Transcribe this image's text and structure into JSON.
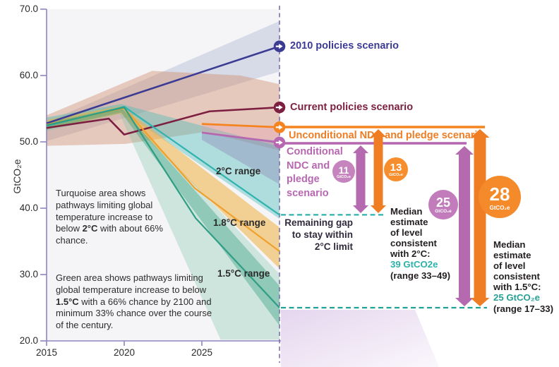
{
  "axis": {
    "y_title": "GtCO₂e",
    "y_ticks": [
      "70.0",
      "60.0",
      "50.0",
      "40.0",
      "30.0",
      "20.0"
    ],
    "x_ticks": [
      "2015",
      "2020",
      "2025"
    ]
  },
  "scenario_labels": {
    "s2010": "2010 policies scenario",
    "current": "Current policies scenario",
    "unconditional": "Unconditional NDC and pledge scenario",
    "conditional": "Conditional NDC and pledge scenario"
  },
  "range_labels": {
    "r2": "2°C range",
    "r18": "1.8°C range",
    "r15": "1.5°C range"
  },
  "notes": {
    "turquoise": {
      "pre": "Turquoise area shows pathways limiting global temperature increase to below ",
      "bold": "2°C",
      "post": " with about 66% chance."
    },
    "green": {
      "pre": "Green area shows pathways limiting global temperature increase to below ",
      "bold": "1.5°C",
      "post": " with a 66% chance by 2100 and minimum 33% chance over the course of the century."
    }
  },
  "gap_label": {
    "l1": "Remaining gap",
    "l2": "to stay within",
    "l3": "2°C limit"
  },
  "gap_circles": [
    {
      "value": "11",
      "unit": "GtCO₂e"
    },
    {
      "value": "13",
      "unit": "GtCO₂e"
    },
    {
      "value": "25",
      "unit": "GtCO₂e"
    },
    {
      "value": "28",
      "unit": "GtCO₂e"
    }
  ],
  "median_blocks": [
    {
      "lines": [
        "Median",
        "estimate",
        "of level",
        "consistent",
        "with 2°C:"
      ],
      "value": "39 GtCO2e",
      "range": "(range 33–49)",
      "value_color": "#2bb1aa"
    },
    {
      "lines": [
        "Median",
        "estimate",
        "of level",
        "consistent",
        "with 1.5°C:"
      ],
      "value": "25 GtCO₂e",
      "range": "(range 17–33)",
      "value_color": "#27a094"
    }
  ],
  "palette": {
    "navy": "#3c3b94",
    "maroon": "#7d1f41",
    "orange": "#ee7d23",
    "purple": "#b768b1",
    "teal": "#2fb4af",
    "green": "#2f9e84",
    "axis": "#8e85c1",
    "dashed_guide": "#7b6fb0"
  },
  "chart_data": {
    "type": "line",
    "xlabel": "",
    "ylabel": "GtCO₂e",
    "x_range": [
      2015,
      2030
    ],
    "y_range": [
      20,
      70
    ],
    "series": [
      {
        "name": "2010 policies scenario",
        "color": "#3c3b94",
        "width": 2.6,
        "points": [
          [
            2015,
            52.8
          ],
          [
            2030,
            64.4
          ]
        ]
      },
      {
        "name": "Current policies scenario",
        "color": "#7d1f41",
        "width": 2.6,
        "points": [
          [
            2015,
            52.1
          ],
          [
            2019,
            53.5
          ],
          [
            2020,
            51.1
          ],
          [
            2025.5,
            54.6
          ],
          [
            2030,
            55.2
          ]
        ]
      },
      {
        "name": "2C median pathway",
        "color": "#2fb4af",
        "width": 2.2,
        "points": [
          [
            2015,
            52.4
          ],
          [
            2020,
            55.3
          ],
          [
            2030,
            39
          ]
        ]
      },
      {
        "name": "1.8C median pathway",
        "color": "#f0a12d",
        "width": 2.2,
        "points": [
          [
            2015,
            52.6
          ],
          [
            2020,
            55.1
          ],
          [
            2024.55,
            43
          ],
          [
            2030,
            33.5
          ]
        ]
      },
      {
        "name": "1.5C median pathway",
        "color": "#2f9e84",
        "width": 2.2,
        "points": [
          [
            2015,
            52.5
          ],
          [
            2020,
            55.2
          ],
          [
            2024.6,
            38.5
          ],
          [
            2030,
            25
          ]
        ]
      },
      {
        "name": "Unconditional NDC and pledge scenario",
        "color": "#f5831f",
        "width": 2.8,
        "points": [
          [
            2025,
            52.7
          ],
          [
            2030,
            52.2
          ]
        ]
      },
      {
        "name": "Conditional NDC and pledge scenario",
        "color": "#b667b0",
        "width": 2.8,
        "points": [
          [
            2025,
            51.4
          ],
          [
            2030,
            49.9
          ]
        ]
      }
    ],
    "areas": [
      {
        "name": "2010 policies range",
        "color": "#ccd1e3",
        "opacity": 0.75,
        "points": [
          [
            2015,
            53
          ],
          [
            2030,
            68.2
          ],
          [
            2030,
            60.6
          ],
          [
            2015,
            50.1
          ]
        ]
      },
      {
        "name": "current policies range",
        "color": "#cf8763",
        "opacity": 0.4,
        "points": [
          [
            2015,
            54
          ],
          [
            2021.8,
            60.7
          ],
          [
            2027.5,
            60
          ],
          [
            2030,
            58.7
          ],
          [
            2030,
            48.7
          ],
          [
            2025.2,
            51.5
          ],
          [
            2020.1,
            49.7
          ],
          [
            2015,
            49.4
          ]
        ]
      },
      {
        "name": "2C range band",
        "color": "#4fbdb7",
        "opacity": 0.42,
        "points": [
          [
            2015,
            53.7
          ],
          [
            2019.8,
            55.7
          ],
          [
            2030,
            49.3
          ],
          [
            2030,
            38.4
          ],
          [
            2019.8,
            54.7
          ],
          [
            2015,
            51.8
          ]
        ]
      },
      {
        "name": "1.5C halo band",
        "color": "#7cc4a5",
        "opacity": 0.32,
        "points": [
          [
            2015,
            53.5
          ],
          [
            2019.7,
            55.5
          ],
          [
            2030,
            30.1
          ],
          [
            2030,
            20.2
          ],
          [
            2026.2,
            20.2
          ],
          [
            2019.7,
            54.2
          ],
          [
            2015,
            51.6
          ]
        ]
      },
      {
        "name": "1.8C range band",
        "color": "#eeb03f",
        "opacity": 0.55,
        "points": [
          [
            2015,
            53.3
          ],
          [
            2019.8,
            55.4
          ],
          [
            2030,
            37.1
          ],
          [
            2030,
            30.9
          ],
          [
            2019.8,
            54.3
          ],
          [
            2015,
            51.9
          ]
        ]
      },
      {
        "name": "1.5C range band",
        "color": "#3ba183",
        "opacity": 0.42,
        "points": [
          [
            2015,
            52.9
          ],
          [
            2019.8,
            55.2
          ],
          [
            2030,
            28.3
          ],
          [
            2030,
            22.3
          ],
          [
            2019.8,
            54.4
          ],
          [
            2015,
            51.9
          ]
        ]
      },
      {
        "name": "ndc pink fan",
        "color": "#e59ab0",
        "opacity": 0.32,
        "points": [
          [
            2025,
            52.5
          ],
          [
            2030,
            52.1
          ],
          [
            2030,
            50.2
          ],
          [
            2025,
            51.3
          ]
        ]
      },
      {
        "name": "ndc purple fan",
        "color": "#8f86b8",
        "opacity": 0.4,
        "points": [
          [
            2025,
            51.2
          ],
          [
            2030,
            50.2
          ],
          [
            2030,
            43.6
          ],
          [
            2025,
            50.3
          ]
        ]
      }
    ],
    "markers": [
      {
        "year": 2030,
        "value": 64.4,
        "color": "#3c3b94"
      },
      {
        "year": 2030,
        "value": 55.2,
        "color": "#7d1f41"
      },
      {
        "year": 2030,
        "value": 52.2,
        "color": "#f5831f"
      },
      {
        "year": 2030,
        "value": 49.9,
        "color": "#b667b0"
      }
    ],
    "medians": [
      {
        "value": 39,
        "color": "#2cb2ab"
      },
      {
        "value": 25,
        "color": "#1fa195"
      }
    ]
  }
}
